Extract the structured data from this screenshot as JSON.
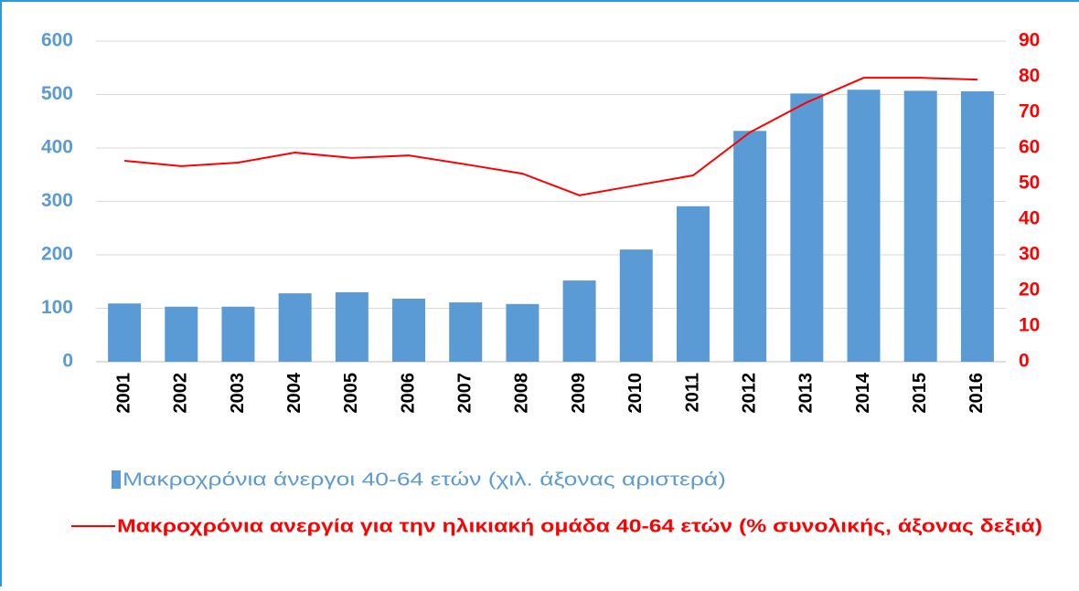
{
  "chart_data": {
    "type": "bar_line",
    "categories": [
      "2001",
      "2002",
      "2003",
      "2004",
      "2005",
      "2006",
      "2007",
      "2008",
      "2009",
      "2010",
      "2011",
      "2012",
      "2013",
      "2014",
      "2015",
      "2016"
    ],
    "series": [
      {
        "name": "Μακροχρόνια άνεργοι 40-64 ετών (χιλ. άξονας αριστερά)",
        "type": "bar",
        "axis": "y",
        "color": "#5b9bd5",
        "values": [
          109,
          103,
          103,
          128,
          130,
          118,
          111,
          108,
          152,
          210,
          291,
          432,
          502,
          509,
          507,
          506
        ]
      },
      {
        "name": "Μακροχρόνια ανεργία για την ηλικιακή ομάδα 40-64 ετών (% συνολικής, άξονας δεξιά)",
        "type": "line",
        "axis": "y2",
        "color": "#ff0000",
        "values": [
          56.4,
          54.9,
          55.9,
          58.7,
          57.2,
          57.9,
          55.4,
          52.8,
          46.7,
          49.5,
          52.3,
          64.4,
          72.8,
          79.7,
          79.7,
          79.2
        ]
      }
    ],
    "ylim": [
      0,
      600
    ],
    "yticks": [
      0,
      100,
      200,
      300,
      400,
      500,
      600
    ],
    "y2lim": [
      0,
      90
    ],
    "y2ticks": [
      0,
      10,
      20,
      30,
      40,
      50,
      60,
      70,
      80,
      90
    ],
    "grid": true
  }
}
